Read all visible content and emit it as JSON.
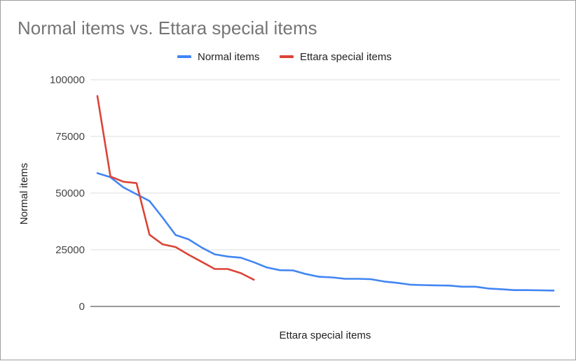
{
  "chart_data": {
    "type": "line",
    "title": "Normal items vs. Ettara special items",
    "xlabel": "Ettara special items",
    "ylabel": "Normal items",
    "ylim": [
      0,
      100000
    ],
    "yticks": [
      0,
      25000,
      50000,
      75000,
      100000
    ],
    "ytick_labels": [
      "0",
      "25000",
      "50000",
      "75000",
      "100000"
    ],
    "grid": true,
    "legend_position": "top",
    "series": [
      {
        "name": "Normal items",
        "color": "#4285f4",
        "values": [
          58800,
          57000,
          52500,
          49500,
          46500,
          39200,
          31500,
          29600,
          26000,
          23000,
          22000,
          21500,
          19500,
          17200,
          16000,
          15900,
          14300,
          13100,
          12800,
          12200,
          12200,
          12000,
          11000,
          10400,
          9600,
          9400,
          9300,
          9200,
          8700,
          8700,
          7900,
          7600,
          7200,
          7200,
          7100,
          7000
        ]
      },
      {
        "name": "Ettara special items",
        "color": "#db4437",
        "values": [
          92800,
          57300,
          55000,
          54400,
          31600,
          27400,
          26200,
          22800,
          19700,
          16500,
          16500,
          14700,
          11800
        ]
      }
    ]
  }
}
